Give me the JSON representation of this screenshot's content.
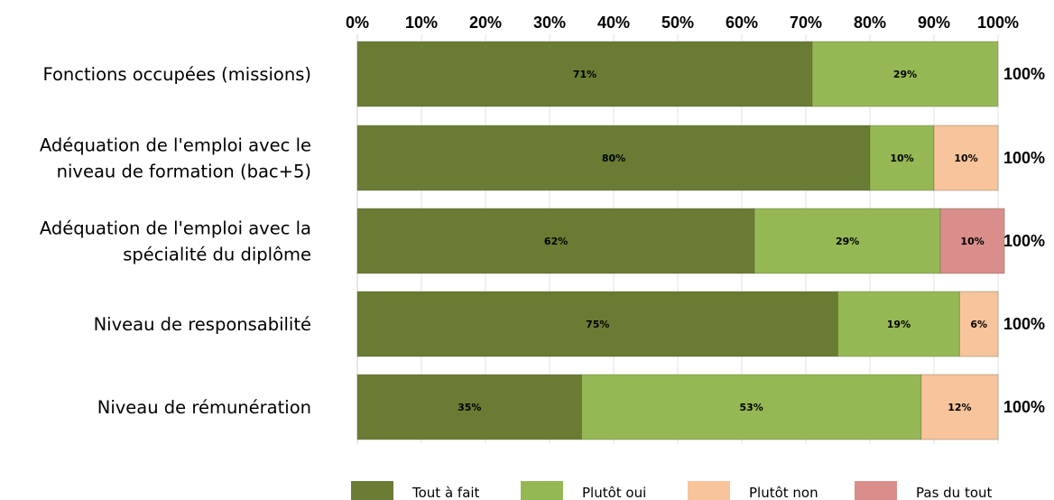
{
  "chart_data": {
    "type": "bar",
    "orientation": "horizontal",
    "stacked": true,
    "categories": [
      [
        "Fonctions occupées (missions)"
      ],
      [
        "Adéquation de l'emploi avec le",
        "niveau de formation (bac+5)"
      ],
      [
        "Adéquation de l'emploi avec la",
        "spécialité du diplôme"
      ],
      [
        "Niveau de responsabilité"
      ],
      [
        "Niveau de rémunération"
      ]
    ],
    "series": [
      {
        "name": "Tout à fait",
        "color": "#6a7c34",
        "values": [
          71,
          80,
          62,
          75,
          35
        ]
      },
      {
        "name": "Plutôt oui",
        "color": "#95b855",
        "values": [
          29,
          10,
          29,
          19,
          53
        ]
      },
      {
        "name": "Plutôt non",
        "color": "#f8c49b",
        "values": [
          0,
          10,
          0,
          6,
          12
        ]
      },
      {
        "name": "Pas du tout",
        "color": "#d98e8b",
        "values": [
          0,
          0,
          10,
          0,
          0
        ]
      }
    ],
    "data_labels": [
      [
        "71%",
        "29%",
        "",
        ""
      ],
      [
        "80%",
        "10%",
        "10%",
        ""
      ],
      [
        "62%",
        "29%",
        "",
        "10%"
      ],
      [
        "75%",
        "19%",
        "6%",
        ""
      ],
      [
        "35%",
        "53%",
        "12%",
        ""
      ]
    ],
    "totals": [
      "100%",
      "100%",
      "100%",
      "100%",
      "100%"
    ],
    "x_ticks": [
      "0%",
      "10%",
      "20%",
      "30%",
      "40%",
      "50%",
      "60%",
      "70%",
      "80%",
      "90%",
      "100%"
    ],
    "xlim": [
      0,
      100
    ],
    "x_axis_position": "top",
    "grid": true,
    "legend_position": "bottom",
    "title": "",
    "xlabel": "",
    "ylabel": ""
  }
}
